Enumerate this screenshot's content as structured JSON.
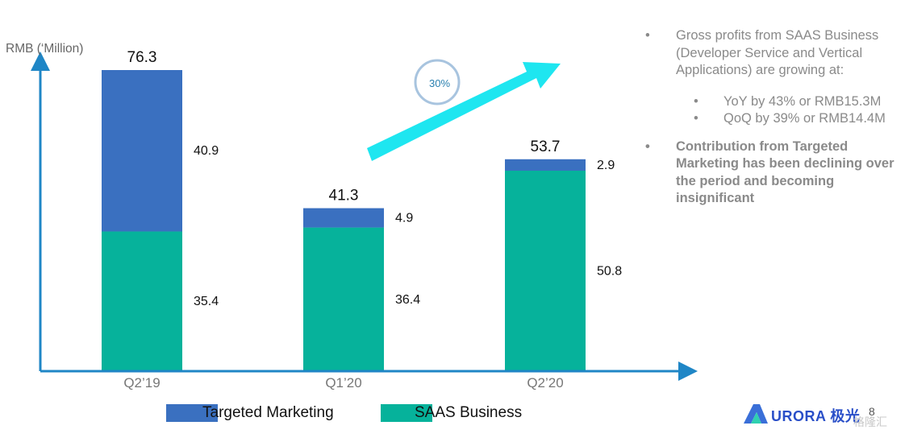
{
  "chart_data": {
    "type": "bar",
    "stacked": true,
    "ylabel": "RMB (‘Million)",
    "categories": [
      "Q2’19",
      "Q1’20",
      "Q2’20"
    ],
    "totals": [
      76.3,
      41.3,
      53.7
    ],
    "series": [
      {
        "name": "SAAS Business",
        "color": "#06b29b",
        "values": [
          35.4,
          36.4,
          50.8
        ]
      },
      {
        "name": "Targeted Marketing",
        "color": "#3a70c0",
        "values": [
          40.9,
          4.9,
          2.9
        ]
      }
    ],
    "legend_position": "bottom",
    "annotation": {
      "label": "30%",
      "arrow_color": "#1ee6f0"
    }
  },
  "bullets": [
    {
      "text": "Gross profits from SAAS Business (Developer Service and Vertical Applications) are growing at:",
      "level": 1,
      "bold": false
    },
    {
      "text": "YoY by 43% or RMB15.3M",
      "level": 2,
      "bold": false
    },
    {
      "text": "QoQ by 39% or RMB14.4M",
      "level": 2,
      "bold": false
    },
    {
      "text": "Contribution from Targeted Marketing has been declining over the period and becoming insignificant",
      "level": 1,
      "bold": true
    }
  ],
  "bullet_glyph": "•",
  "logo": {
    "text": "URORA",
    "cjk": "极光",
    "icon": "aurora-logo-icon"
  },
  "page_number": "8",
  "watermark": "格隆汇"
}
